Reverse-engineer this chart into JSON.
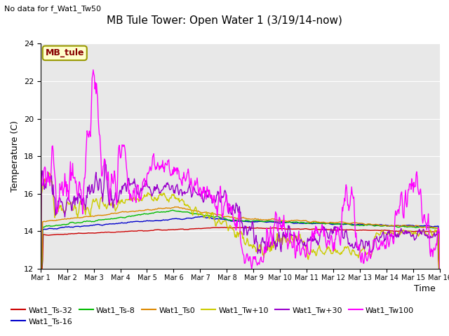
{
  "title": "MB Tule Tower: Open Water 1 (3/19/14-now)",
  "subtitle": "No data for f_Wat1_Tw50",
  "ylabel": "Temperature (C)",
  "xlabel": "Time",
  "ylim": [
    12,
    24
  ],
  "yticks": [
    12,
    14,
    16,
    18,
    20,
    22,
    24
  ],
  "bg_color": "#e8e8e8",
  "legend_box_color": "#ffffcc",
  "legend_box_edge": "#999900",
  "series": {
    "Wat1_Ts-32": {
      "color": "#cc0000",
      "lw": 1.0
    },
    "Wat1_Ts-16": {
      "color": "#0000cc",
      "lw": 1.0
    },
    "Wat1_Ts-8": {
      "color": "#00bb00",
      "lw": 1.0
    },
    "Wat1_Ts0": {
      "color": "#dd8800",
      "lw": 1.0
    },
    "Wat1_Tw+10": {
      "color": "#cccc00",
      "lw": 1.0
    },
    "Wat1_Tw+30": {
      "color": "#9900cc",
      "lw": 1.0
    },
    "Wat1_Tw100": {
      "color": "#ff00ff",
      "lw": 1.0
    }
  },
  "xtick_labels": [
    "Mar 1",
    "Mar 2",
    "Mar 3",
    "Mar 4",
    "Mar 5",
    "Mar 6",
    "Mar 7",
    "Mar 8",
    "Mar 9",
    "Mar 10",
    "Mar 11",
    "Mar 12",
    "Mar 13",
    "Mar 14",
    "Mar 15",
    "Mar 16"
  ],
  "n_days": 15
}
